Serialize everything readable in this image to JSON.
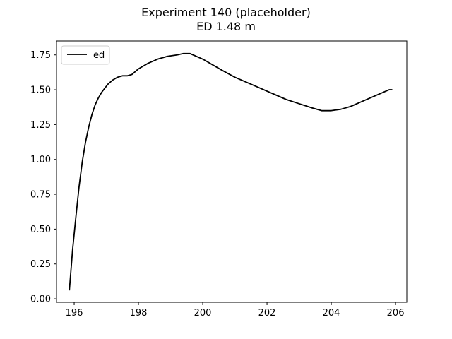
{
  "chart_data": {
    "type": "line",
    "title": "Experiment 140 (placeholder)",
    "subtitle": "ED 1.48 m",
    "xlabel": "",
    "ylabel": "",
    "xlim": [
      195.45,
      206.35
    ],
    "ylim": [
      -0.025,
      1.85
    ],
    "xticks": [
      196,
      198,
      200,
      202,
      204,
      206
    ],
    "yticks": [
      0.0,
      0.25,
      0.5,
      0.75,
      1.0,
      1.25,
      1.5,
      1.75
    ],
    "grid": false,
    "legend_position": "top-left",
    "series": [
      {
        "name": "ed",
        "color": "#000000",
        "x": [
          195.85,
          195.95,
          196.05,
          196.15,
          196.25,
          196.35,
          196.45,
          196.55,
          196.65,
          196.75,
          196.85,
          196.95,
          197.05,
          197.2,
          197.35,
          197.5,
          197.65,
          197.8,
          198.0,
          198.3,
          198.6,
          198.9,
          199.2,
          199.4,
          199.6,
          199.8,
          200.0,
          200.3,
          200.6,
          201.0,
          201.4,
          201.8,
          202.2,
          202.6,
          203.0,
          203.4,
          203.7,
          204.0,
          204.3,
          204.6,
          205.0,
          205.4,
          205.8,
          205.9
        ],
        "y": [
          0.06,
          0.35,
          0.58,
          0.8,
          0.98,
          1.12,
          1.23,
          1.32,
          1.39,
          1.44,
          1.48,
          1.51,
          1.54,
          1.57,
          1.59,
          1.6,
          1.6,
          1.61,
          1.65,
          1.69,
          1.72,
          1.74,
          1.75,
          1.76,
          1.76,
          1.74,
          1.72,
          1.68,
          1.64,
          1.59,
          1.55,
          1.51,
          1.47,
          1.43,
          1.4,
          1.37,
          1.35,
          1.35,
          1.36,
          1.38,
          1.42,
          1.46,
          1.5,
          1.5
        ]
      }
    ]
  }
}
